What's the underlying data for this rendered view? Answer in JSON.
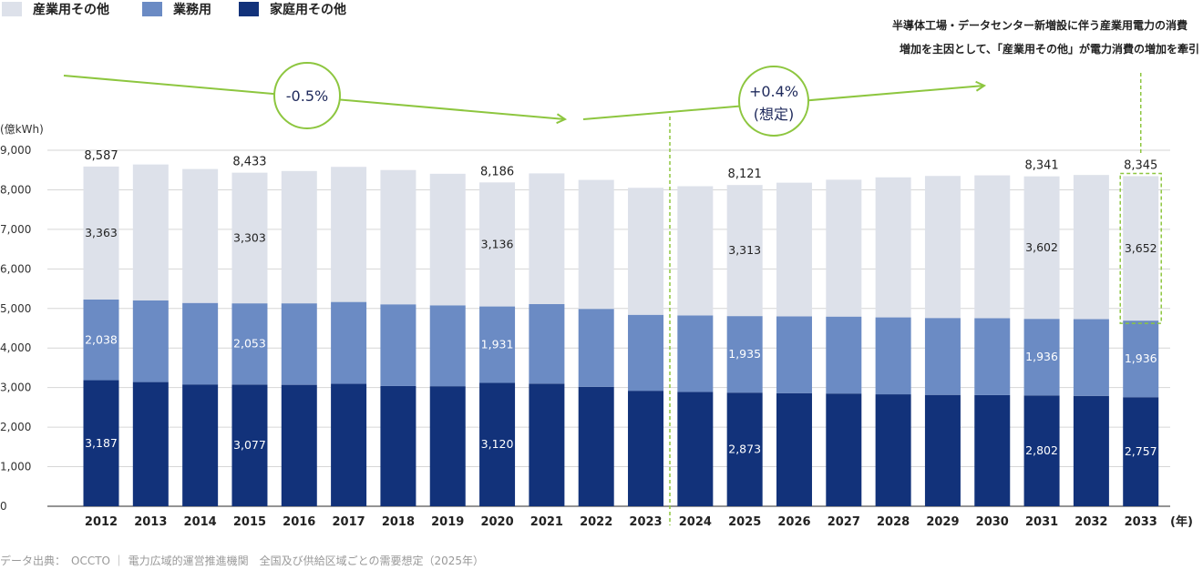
{
  "chart_data": {
    "type": "bar",
    "stacked": true,
    "categories": [
      "2012",
      "2013",
      "2014",
      "2015",
      "2016",
      "2017",
      "2018",
      "2019",
      "2020",
      "2021",
      "2022",
      "2023",
      "2024",
      "2025",
      "2026",
      "2027",
      "2028",
      "2029",
      "2030",
      "2031",
      "2032",
      "2033"
    ],
    "series": [
      {
        "name": "家庭用その他",
        "color": "#12327a",
        "values": [
          3187,
          3140,
          3080,
          3077,
          3070,
          3095,
          3040,
          3035,
          3120,
          3100,
          3020,
          2920,
          2890,
          2873,
          2860,
          2850,
          2830,
          2815,
          2810,
          2802,
          2790,
          2757
        ]
      },
      {
        "name": "業務用",
        "color": "#6b8bc4",
        "values": [
          2038,
          2065,
          2060,
          2053,
          2060,
          2070,
          2065,
          2045,
          1931,
          2010,
          1970,
          1920,
          1935,
          1935,
          1940,
          1945,
          1945,
          1945,
          1945,
          1936,
          1940,
          1936
        ]
      },
      {
        "name": "産業用その他",
        "color": "#dde1ea",
        "values": [
          3363,
          3435,
          3385,
          3303,
          3345,
          3415,
          3395,
          3325,
          3136,
          3305,
          3260,
          3210,
          3265,
          3313,
          3380,
          3460,
          3540,
          3590,
          3610,
          3602,
          3645,
          3652
        ]
      }
    ],
    "labels": {
      "家庭用その他": {
        "2012": "3,187",
        "2015": "3,077",
        "2020": "3,120",
        "2025": "2,873",
        "2031": "2,802",
        "2033": "2,757"
      },
      "業務用": {
        "2012": "2,038",
        "2015": "2,053",
        "2020": "1,931",
        "2025": "1,935",
        "2031": "1,936",
        "2033": "1,936"
      },
      "産業用その他": {
        "2012": "3,363",
        "2015": "3,303",
        "2020": "3,136",
        "2025": "3,313",
        "2031": "3,602",
        "2033": "3,652"
      }
    },
    "totals": {
      "2012": "8,587",
      "2015": "8,433",
      "2020": "8,186",
      "2025": "8,121",
      "2031": "8,341",
      "2033": "8,345"
    },
    "ylabel": "(億kWh)",
    "xlabel": "(年)",
    "ylim": [
      0,
      9000
    ],
    "yticks": [
      "0",
      "1,000",
      "2,000",
      "3,000",
      "4,000",
      "5,000",
      "6,000",
      "7,000",
      "8,000",
      "9,000"
    ],
    "legend_position": "top-left",
    "grid": true,
    "actual_forecast_divider_between": [
      "2023",
      "2024"
    ],
    "highlight_segment": {
      "category": "2033",
      "series": "産業用その他",
      "color": "#8dc63f"
    },
    "annotations": {
      "past_trend": "-0.5%",
      "future_trend_line1": "+0.4%",
      "future_trend_line2": "(想定)",
      "trend_color": "#8dc63f",
      "note_line1": "半導体工場・データセンター新増設に伴う産業用電力の消費",
      "note_line2": "増加を主因として、「産業用その他」が電力消費の増加を牽引"
    },
    "source": "データ出典：　OCCTO ｜ 電力広域的運営推進機関　全国及び供給区域ごとの需要想定（2025年）"
  }
}
